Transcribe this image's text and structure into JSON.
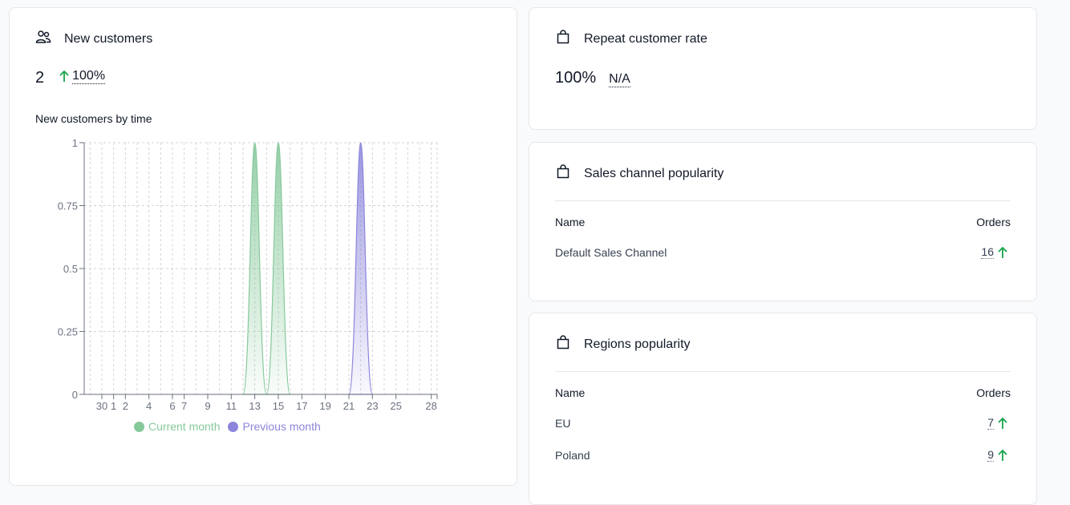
{
  "new_customers": {
    "title": "New customers",
    "value": "2",
    "change": "100%",
    "chart_title": "New customers by time",
    "legend": [
      {
        "label": "Current month",
        "color": "#86c99b"
      },
      {
        "label": "Previous month",
        "color": "#8b86dc"
      }
    ]
  },
  "repeat_rate": {
    "title": "Repeat customer rate",
    "value": "100%",
    "change": "N/A"
  },
  "sales_channel": {
    "title": "Sales channel popularity",
    "col_name": "Name",
    "col_orders": "Orders",
    "rows": [
      {
        "name": "Default Sales Channel",
        "orders": "16"
      }
    ]
  },
  "regions": {
    "title": "Regions popularity",
    "col_name": "Name",
    "col_orders": "Orders",
    "rows": [
      {
        "name": "EU",
        "orders": "7"
      },
      {
        "name": "Poland",
        "orders": "9"
      }
    ]
  },
  "chart_data": {
    "type": "area",
    "title": "New customers by time",
    "xlabel": "",
    "ylabel": "",
    "ylim": [
      0,
      1
    ],
    "yticks": [
      "0",
      "0.25",
      "0.5",
      "0.75",
      "1"
    ],
    "xticks": [
      "30",
      "1",
      "2",
      "4",
      "6",
      "7",
      "9",
      "11",
      "13",
      "15",
      "17",
      "19",
      "21",
      "23",
      "25",
      "28"
    ],
    "x": [
      "29",
      "30",
      "1",
      "2",
      "3",
      "4",
      "5",
      "6",
      "7",
      "8",
      "9",
      "10",
      "11",
      "12",
      "13",
      "14",
      "15",
      "16",
      "17",
      "18",
      "19",
      "20",
      "21",
      "22",
      "23",
      "24",
      "25",
      "26",
      "27",
      "28"
    ],
    "series": [
      {
        "name": "Current month",
        "color": "#86c99b",
        "values": [
          0,
          0,
          0,
          0,
          0,
          0,
          0,
          0,
          0,
          0,
          0,
          0,
          0,
          0,
          1,
          0,
          1,
          0,
          0,
          0,
          0,
          0,
          0,
          0,
          0,
          0,
          0,
          0,
          0,
          0
        ]
      },
      {
        "name": "Previous month",
        "color": "#8b86dc",
        "values": [
          0,
          0,
          0,
          0,
          0,
          0,
          0,
          0,
          0,
          0,
          0,
          0,
          0,
          0,
          0,
          0,
          0,
          0,
          0,
          0,
          0,
          0,
          0,
          1,
          0,
          0,
          0,
          0,
          0,
          0
        ]
      }
    ],
    "grid": true,
    "legend_position": "bottom"
  }
}
